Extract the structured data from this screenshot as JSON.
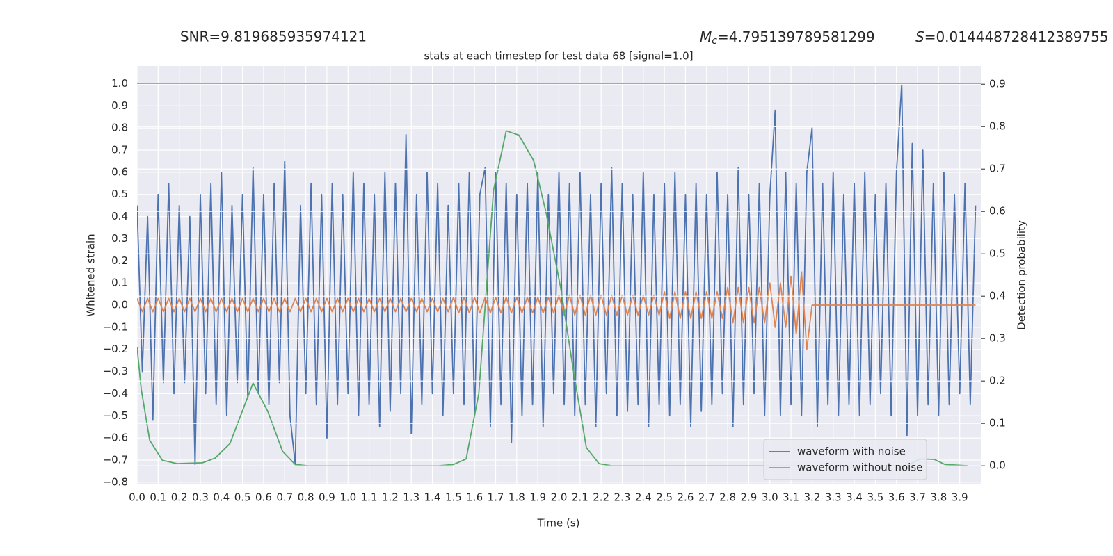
{
  "chart_data": {
    "type": "line",
    "title": "stats at each timestep for test data 68 [signal=1.0]",
    "annotations": [
      {
        "text": "SNR=9.819685935974121"
      },
      {
        "symbol": "M",
        "subscript": "c",
        "text": "=4.795139789581299"
      },
      {
        "symbol": "S",
        "text": "=0.014448728412389755"
      }
    ],
    "xlabel": "Time (s)",
    "ylabel": "Whitened strain",
    "y2label": "Detection probability",
    "xlim": [
      0,
      4.0
    ],
    "ylim": [
      -0.81,
      1.08
    ],
    "y2lim": [
      -0.044,
      0.943
    ],
    "xticks": [
      {
        "value": 0,
        "label": "0.0"
      },
      0.1,
      0.2,
      0.3,
      0.4,
      0.5,
      0.6,
      0.7,
      0.8,
      0.9,
      {
        "value": 1,
        "label": "1.0"
      },
      1.1,
      1.2,
      1.3,
      1.4,
      1.5,
      1.6,
      1.7,
      1.8,
      1.9,
      {
        "value": 2,
        "label": "2.0"
      },
      2.1,
      2.2,
      2.3,
      2.4,
      2.5,
      2.6,
      2.7,
      2.8,
      2.9,
      {
        "value": 3,
        "label": "3.0"
      },
      3.1,
      3.2,
      3.3,
      3.4,
      3.5,
      3.6,
      3.7,
      3.8,
      3.9
    ],
    "yticks": [
      {
        "value": -0.8,
        "label": "−0.8"
      },
      {
        "value": -0.7,
        "label": "−0.7"
      },
      {
        "value": -0.6,
        "label": "−0.6"
      },
      {
        "value": -0.5,
        "label": "−0.5"
      },
      {
        "value": -0.4,
        "label": "−0.4"
      },
      {
        "value": -0.3,
        "label": "−0.3"
      },
      {
        "value": -0.2,
        "label": "−0.2"
      },
      {
        "value": -0.1,
        "label": "−0.1"
      },
      {
        "value": 0,
        "label": "0.0"
      },
      0.1,
      0.2,
      0.3,
      0.4,
      0.5,
      0.6,
      0.7,
      0.8,
      0.9,
      {
        "value": 1,
        "label": "1.0"
      }
    ],
    "y2ticks": [
      {
        "value": 0,
        "label": "0.0"
      },
      0.1,
      0.2,
      0.3,
      0.4,
      0.5,
      0.6,
      0.7,
      0.8,
      0.9
    ],
    "grid": true,
    "legend": "lower right",
    "hlines": [
      {
        "value": 1.0,
        "color": "#c44e52"
      }
    ],
    "x": [
      0,
      0.025,
      0.05,
      0.075,
      0.1,
      0.125,
      0.15,
      0.175,
      0.2,
      0.225,
      0.25,
      0.275,
      0.3,
      0.325,
      0.35,
      0.375,
      0.4,
      0.425,
      0.45,
      0.475,
      0.5,
      0.525,
      0.55,
      0.575,
      0.6,
      0.625,
      0.65,
      0.675,
      0.7,
      0.725,
      0.75,
      0.775,
      0.8,
      0.825,
      0.85,
      0.875,
      0.9,
      0.925,
      0.95,
      0.975,
      1,
      1.025,
      1.05,
      1.075,
      1.1,
      1.125,
      1.15,
      1.175,
      1.2,
      1.225,
      1.25,
      1.275,
      1.3,
      1.325,
      1.35,
      1.375,
      1.4,
      1.425,
      1.45,
      1.475,
      1.5,
      1.525,
      1.55,
      1.575,
      1.6,
      1.625,
      1.65,
      1.675,
      1.7,
      1.725,
      1.75,
      1.775,
      1.8,
      1.825,
      1.85,
      1.875,
      1.9,
      1.925,
      1.95,
      1.975,
      2,
      2.025,
      2.05,
      2.075,
      2.1,
      2.125,
      2.15,
      2.175,
      2.2,
      2.225,
      2.25,
      2.275,
      2.3,
      2.325,
      2.35,
      2.375,
      2.4,
      2.425,
      2.45,
      2.475,
      2.5,
      2.525,
      2.55,
      2.575,
      2.6,
      2.625,
      2.65,
      2.675,
      2.7,
      2.725,
      2.75,
      2.775,
      2.8,
      2.825,
      2.85,
      2.875,
      2.9,
      2.925,
      2.95,
      2.975,
      3,
      3.025,
      3.05,
      3.075,
      3.1,
      3.125,
      3.15,
      3.175,
      3.2,
      3.225,
      3.25,
      3.275,
      3.3,
      3.325,
      3.35,
      3.375,
      3.4,
      3.425,
      3.45,
      3.475,
      3.5,
      3.525,
      3.55,
      3.575,
      3.6,
      3.625,
      3.65,
      3.675,
      3.7,
      3.725,
      3.75,
      3.775,
      3.8,
      3.825,
      3.85,
      3.875,
      3.9,
      3.925,
      3.95,
      3.975
    ],
    "series": [
      {
        "name": "waveform with noise",
        "color": "#4c72b0",
        "values": [
          0.45,
          -0.3,
          0.4,
          -0.52,
          0.5,
          -0.35,
          0.55,
          -0.4,
          0.45,
          -0.35,
          0.4,
          -0.72,
          0.5,
          -0.4,
          0.55,
          -0.45,
          0.6,
          -0.5,
          0.45,
          -0.35,
          0.5,
          -0.42,
          0.62,
          -0.4,
          0.5,
          -0.45,
          0.55,
          -0.35,
          0.65,
          -0.5,
          -0.72,
          0.45,
          -0.4,
          0.55,
          -0.45,
          0.5,
          -0.6,
          0.55,
          -0.45,
          0.5,
          -0.4,
          0.6,
          -0.5,
          0.55,
          -0.45,
          0.5,
          -0.55,
          0.6,
          -0.48,
          0.55,
          -0.4,
          0.77,
          -0.58,
          0.5,
          -0.45,
          0.6,
          -0.4,
          0.55,
          -0.5,
          0.45,
          -0.4,
          0.55,
          -0.45,
          0.6,
          -0.5,
          0.5,
          0.62,
          -0.55,
          0.6,
          -0.45,
          0.55,
          -0.62,
          0.5,
          -0.5,
          0.55,
          -0.45,
          0.6,
          -0.55,
          0.5,
          -0.4,
          0.6,
          -0.45,
          0.55,
          -0.5,
          0.6,
          -0.45,
          0.5,
          -0.55,
          0.55,
          -0.4,
          0.62,
          -0.5,
          0.55,
          -0.48,
          0.5,
          -0.45,
          0.6,
          -0.55,
          0.5,
          -0.45,
          0.55,
          -0.5,
          0.6,
          -0.45,
          0.5,
          -0.55,
          0.55,
          -0.48,
          0.5,
          -0.45,
          0.6,
          -0.4,
          0.5,
          -0.55,
          0.62,
          -0.45,
          0.5,
          -0.4,
          0.55,
          -0.5,
          0.5,
          0.88,
          -0.5,
          0.6,
          -0.45,
          0.55,
          -0.5,
          0.6,
          0.8,
          -0.55,
          0.55,
          -0.45,
          0.6,
          -0.5,
          0.5,
          -0.45,
          0.55,
          -0.5,
          0.6,
          -0.45,
          0.5,
          -0.4,
          0.55,
          -0.5,
          0.6,
          1.0,
          -0.59,
          0.73,
          -0.5,
          0.7,
          -0.45,
          0.55,
          -0.5,
          0.6,
          -0.45,
          0.5,
          -0.4,
          0.55,
          -0.45,
          0.45
        ]
      },
      {
        "name": "waveform without noise",
        "color": "#dd8452",
        "values": [
          0.03,
          -0.03,
          0.03,
          -0.03,
          0.03,
          -0.03,
          0.03,
          -0.03,
          0.03,
          -0.03,
          0.03,
          -0.03,
          0.03,
          -0.03,
          0.03,
          -0.03,
          0.03,
          -0.03,
          0.03,
          -0.03,
          0.03,
          -0.03,
          0.03,
          -0.03,
          0.03,
          -0.03,
          0.03,
          -0.03,
          0.03,
          -0.03,
          0.03,
          -0.03,
          0.03,
          -0.03,
          0.03,
          -0.03,
          0.03,
          -0.03,
          0.03,
          -0.03,
          0.03,
          -0.03,
          0.03,
          -0.03,
          0.03,
          -0.03,
          0.03,
          -0.03,
          0.03,
          -0.03,
          0.03,
          -0.03,
          0.03,
          -0.03,
          0.03,
          -0.03,
          0.03,
          -0.03,
          0.03,
          -0.03,
          0.035,
          -0.035,
          0.035,
          -0.035,
          0.035,
          -0.035,
          0.035,
          -0.035,
          0.035,
          -0.035,
          0.035,
          -0.035,
          0.035,
          -0.035,
          0.035,
          -0.035,
          0.035,
          -0.035,
          0.035,
          -0.035,
          0.045,
          -0.045,
          0.045,
          -0.045,
          0.045,
          -0.045,
          0.045,
          -0.045,
          0.045,
          -0.045,
          0.045,
          -0.045,
          0.045,
          -0.045,
          0.045,
          -0.045,
          0.045,
          -0.045,
          0.045,
          -0.045,
          0.06,
          -0.06,
          0.06,
          -0.06,
          0.06,
          -0.06,
          0.06,
          -0.06,
          0.06,
          -0.06,
          0.06,
          -0.06,
          0.08,
          -0.08,
          0.08,
          -0.08,
          0.08,
          -0.08,
          0.08,
          -0.08,
          0.1,
          -0.1,
          0.1,
          -0.1,
          0.13,
          -0.13,
          0.15,
          -0.2,
          0,
          0,
          0,
          0,
          0,
          0,
          0,
          0,
          0,
          0,
          0,
          0,
          0,
          0,
          0,
          0,
          0,
          0,
          0,
          0,
          0,
          0,
          0,
          0,
          0,
          0,
          0,
          0,
          0,
          0,
          0,
          0
        ]
      },
      {
        "color": "#55a868",
        "axis": "y2",
        "x": [
          0,
          0.02,
          0.06,
          0.12,
          0.19,
          0.31,
          0.37,
          0.44,
          0.55,
          0.62,
          0.69,
          0.75,
          0.81,
          1.43,
          1.5,
          1.56,
          1.62,
          1.69,
          1.75,
          1.81,
          1.88,
          1.94,
          2.01,
          2.07,
          2.13,
          2.19,
          2.25,
          3.65,
          3.71,
          3.78,
          3.83,
          3.94
        ],
        "values": [
          0.28,
          0.18,
          0.06,
          0.013,
          0.005,
          0.007,
          0.018,
          0.052,
          0.195,
          0.128,
          0.034,
          0.003,
          0.0,
          0.0,
          0.003,
          0.016,
          0.17,
          0.65,
          0.79,
          0.78,
          0.72,
          0.595,
          0.415,
          0.22,
          0.043,
          0.005,
          0.0,
          0.0,
          0.016,
          0.015,
          0.003,
          0.0
        ]
      }
    ]
  }
}
